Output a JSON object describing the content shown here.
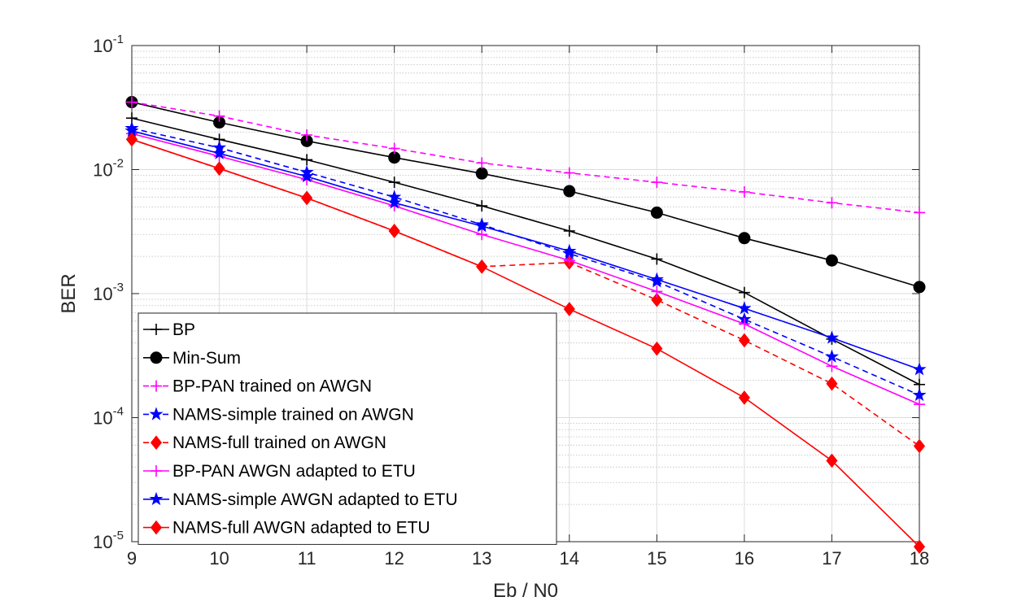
{
  "chart_data": {
    "type": "line",
    "xlabel": "Eb / N0",
    "ylabel": "BER",
    "xlim": [
      9,
      18
    ],
    "ylim": [
      1e-05,
      0.1
    ],
    "yscale": "log",
    "x_ticks": [
      9,
      10,
      11,
      12,
      13,
      14,
      15,
      16,
      17,
      18
    ],
    "y_ticks": [
      {
        "base": "10",
        "exp": "-5",
        "value": 1e-05
      },
      {
        "base": "10",
        "exp": "-4",
        "value": 0.0001
      },
      {
        "base": "10",
        "exp": "-3",
        "value": 0.001
      },
      {
        "base": "10",
        "exp": "-2",
        "value": 0.01
      },
      {
        "base": "10",
        "exp": "-1",
        "value": 0.1
      }
    ],
    "grid": true,
    "legend_position": "lower-left",
    "x": [
      9,
      10,
      11,
      12,
      13,
      14,
      15,
      16,
      17,
      18
    ],
    "series": [
      {
        "name": "BP",
        "color": "#000000",
        "dash": false,
        "marker": "plus",
        "values": [
          0.026,
          0.0175,
          0.012,
          0.0079,
          0.0051,
          0.0032,
          0.0019,
          0.00102,
          0.00043,
          0.000185
        ]
      },
      {
        "name": "Min-Sum",
        "color": "#000000",
        "dash": false,
        "marker": "circle",
        "values": [
          0.035,
          0.024,
          0.017,
          0.0125,
          0.0093,
          0.0067,
          0.0045,
          0.0028,
          0.00185,
          0.00113
        ]
      },
      {
        "name": "BP-PAN trained on AWGN",
        "color": "#ff00ff",
        "dash": true,
        "marker": "plus",
        "values": [
          0.035,
          0.027,
          0.019,
          0.0148,
          0.0113,
          0.0094,
          0.0079,
          0.0066,
          0.0054,
          0.0045
        ]
      },
      {
        "name": "NAMS-simple trained on AWGN",
        "color": "#0000ff",
        "dash": true,
        "marker": "star",
        "values": [
          0.0215,
          0.015,
          0.0095,
          0.006,
          0.0036,
          0.0021,
          0.00125,
          0.00062,
          0.00031,
          0.000152
        ]
      },
      {
        "name": "NAMS-full trained on AWGN",
        "color": "#ff0000",
        "dash": true,
        "marker": "diamond",
        "values": [
          0.0175,
          0.0102,
          0.0059,
          0.0032,
          0.00165,
          0.00178,
          0.00089,
          0.00042,
          0.000188,
          5.9e-05
        ]
      },
      {
        "name": "BP-PAN AWGN adapted to ETU",
        "color": "#ff00ff",
        "dash": false,
        "marker": "plus",
        "values": [
          0.0195,
          0.0128,
          0.0083,
          0.0051,
          0.003,
          0.00185,
          0.00104,
          0.00057,
          0.00026,
          0.000128
        ]
      },
      {
        "name": "NAMS-simple AWGN adapted to ETU",
        "color": "#0000ff",
        "dash": false,
        "marker": "star",
        "values": [
          0.0205,
          0.0135,
          0.0088,
          0.0054,
          0.0035,
          0.0022,
          0.0013,
          0.00076,
          0.00044,
          0.000245
        ]
      },
      {
        "name": "NAMS-full AWGN adapted to ETU",
        "color": "#ff0000",
        "dash": false,
        "marker": "diamond",
        "values": [
          0.0175,
          0.0102,
          0.0059,
          0.0032,
          0.00165,
          0.00075,
          0.00036,
          0.000145,
          4.5e-05,
          9.1e-06
        ]
      }
    ]
  }
}
